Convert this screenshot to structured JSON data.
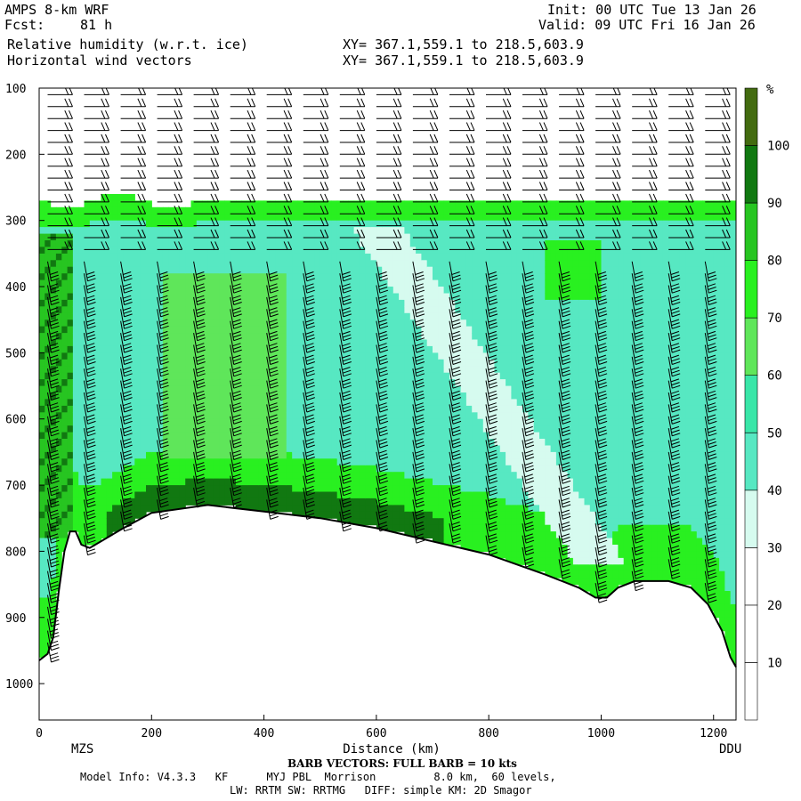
{
  "header": {
    "model": "AMPS 8-km WRF",
    "fcst_label": "Fcst:",
    "fcst_value": "81 h",
    "init": "Init: 00 UTC Tue 13 Jan 26",
    "valid": "Valid: 09 UTC Fri 16 Jan 26",
    "field1": "Relative humidity (w.r.t. ice)",
    "field2": "Horizontal wind vectors",
    "xy1": "XY= 367.1,559.1 to 218.5,603.9",
    "xy2": "XY= 367.1,559.1 to 218.5,603.9"
  },
  "footer": {
    "barb_note": "BARB VECTORS:  FULL BARB = 10 kts",
    "model_info": "Model Info: V4.3.3   KF      MYJ PBL  Morrison         8.0 km,  60 levels,",
    "model_info2": "LW: RRTM SW: RRTMG   DIFF: simple KM: 2D Smagor"
  },
  "colors": {
    "rh_scale": [
      "#ffffff",
      "#ffffff",
      "#ffffff",
      "#d6fbef",
      "#57e8c2",
      "#39e6a8",
      "#5fe65a",
      "#29f020",
      "#27c521",
      "#117811",
      "#436b10"
    ]
  },
  "chart_data": {
    "type": "heatmap",
    "title": "Relative humidity (w.r.t. ice)",
    "xlabel": "Distance (km)",
    "ylabel": "",
    "xlim": [
      0,
      1240
    ],
    "ylim": [
      1055,
      100
    ],
    "x_ticks": [
      0,
      200,
      400,
      600,
      800,
      1000,
      1200
    ],
    "x_tick_labels": [
      "0",
      "200",
      "400",
      "600",
      "800",
      "1000",
      "1200"
    ],
    "y_ticks": [
      100,
      200,
      300,
      400,
      500,
      600,
      700,
      800,
      900,
      1000
    ],
    "y_tick_labels": [
      "100",
      "200",
      "300",
      "400",
      "500",
      "600",
      "700",
      "800",
      "900",
      "1000"
    ],
    "station_left": "MZS",
    "station_right": "DDU",
    "colorbar": {
      "unit": "%",
      "levels": [
        0,
        10,
        20,
        30,
        40,
        50,
        60,
        70,
        80,
        90,
        100,
        110
      ],
      "tick_labels": [
        "10",
        "20",
        "30",
        "40",
        "50",
        "60",
        "70",
        "80",
        "90",
        "100"
      ]
    },
    "terrain_pressure": [
      {
        "x": 0,
        "p": 965
      },
      {
        "x": 15,
        "p": 955
      },
      {
        "x": 25,
        "p": 930
      },
      {
        "x": 35,
        "p": 860
      },
      {
        "x": 45,
        "p": 800
      },
      {
        "x": 55,
        "p": 770
      },
      {
        "x": 65,
        "p": 770
      },
      {
        "x": 75,
        "p": 790
      },
      {
        "x": 90,
        "p": 795
      },
      {
        "x": 100,
        "p": 790
      },
      {
        "x": 120,
        "p": 780
      },
      {
        "x": 150,
        "p": 765
      },
      {
        "x": 200,
        "p": 742
      },
      {
        "x": 300,
        "p": 730
      },
      {
        "x": 400,
        "p": 740
      },
      {
        "x": 500,
        "p": 750
      },
      {
        "x": 600,
        "p": 765
      },
      {
        "x": 700,
        "p": 785
      },
      {
        "x": 800,
        "p": 805
      },
      {
        "x": 900,
        "p": 835
      },
      {
        "x": 960,
        "p": 855
      },
      {
        "x": 990,
        "p": 870
      },
      {
        "x": 1010,
        "p": 870
      },
      {
        "x": 1030,
        "p": 855
      },
      {
        "x": 1060,
        "p": 845
      },
      {
        "x": 1120,
        "p": 845
      },
      {
        "x": 1160,
        "p": 855
      },
      {
        "x": 1190,
        "p": 880
      },
      {
        "x": 1215,
        "p": 920
      },
      {
        "x": 1230,
        "p": 960
      },
      {
        "x": 1240,
        "p": 975
      }
    ],
    "moist_layer_top_pressure": 280,
    "dry_tongues": [
      {
        "x_top": 600,
        "p_top": 310,
        "x_bottom": 1000,
        "p_bottom": 820,
        "rh": 35
      },
      {
        "x_top": 900,
        "p_top": 300,
        "x_bottom": 1180,
        "p_bottom": 600,
        "rh": 45
      }
    ]
  }
}
